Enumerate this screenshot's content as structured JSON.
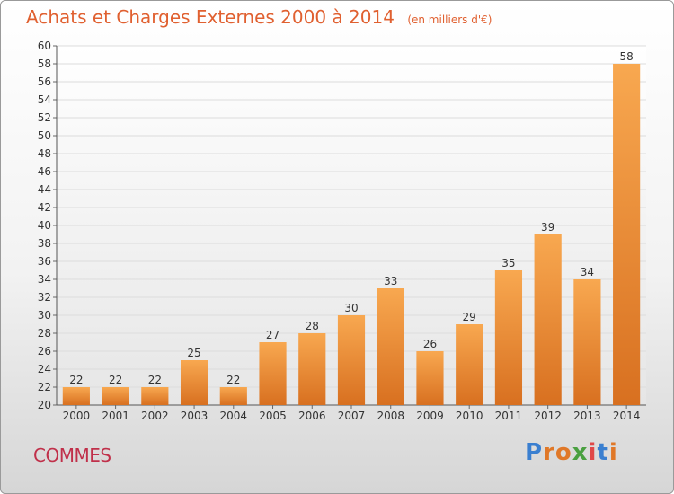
{
  "header": {
    "title": "Achats et Charges Externes 2000 à 2014",
    "subtitle": "(en milliers d'€)"
  },
  "footer": {
    "commune": "COMMES",
    "brand": "Proxiti"
  },
  "colors": {
    "title": "#e06030",
    "commune": "#c0304a",
    "bar_top": "#f8a850",
    "bar_bottom": "#d87020",
    "brand_letters": [
      "#3a7fd0",
      "#e07828",
      "#e07828",
      "#4aa040",
      "#e04848",
      "#3a7fd0",
      "#e07828"
    ]
  },
  "chart_data": {
    "type": "bar",
    "categories": [
      "2000",
      "2001",
      "2002",
      "2003",
      "2004",
      "2005",
      "2006",
      "2007",
      "2008",
      "2009",
      "2010",
      "2011",
      "2012",
      "2013",
      "2014"
    ],
    "values": [
      22,
      22,
      22,
      25,
      22,
      27,
      28,
      30,
      33,
      26,
      29,
      35,
      39,
      34,
      58
    ],
    "title": "Achats et Charges Externes 2000 à 2014",
    "subtitle": "(en milliers d'€)",
    "xlabel": "",
    "ylabel": "",
    "ylim": [
      20,
      60
    ],
    "ytick_step": 2,
    "grid": true,
    "data_labels": true
  }
}
